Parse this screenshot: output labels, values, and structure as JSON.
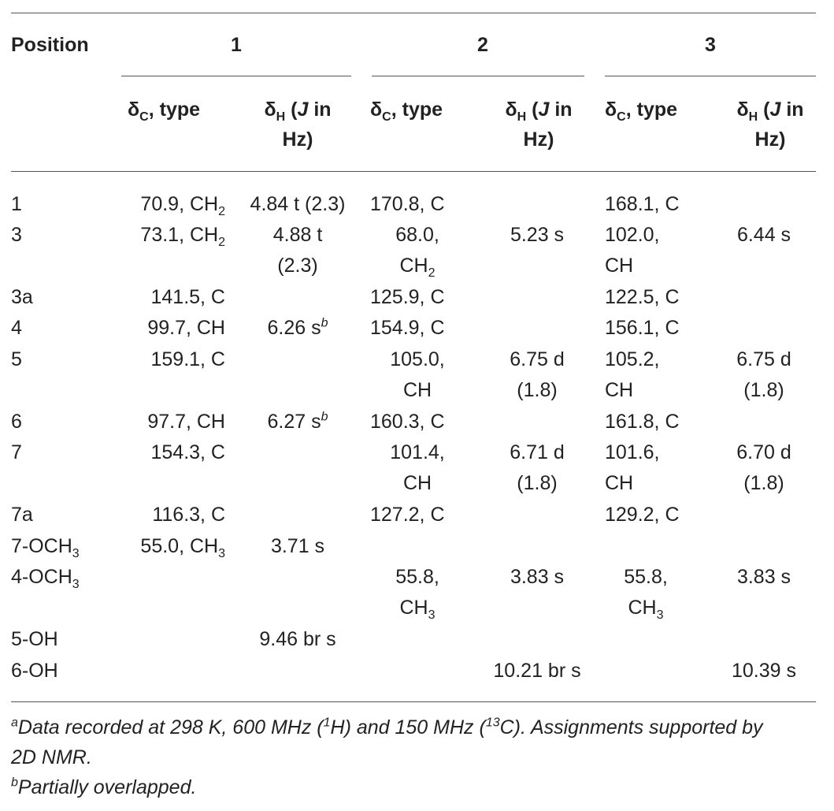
{
  "header": {
    "position": "Position",
    "groups": [
      "1",
      "2",
      "3"
    ],
    "sub": {
      "dc": "δ",
      "dc_sub": "C",
      "dc_rest": ", type",
      "dh": "δ",
      "dh_sub": "H",
      "dh_open": " (",
      "dh_j": "J",
      "dh_in": " in",
      "dh_hz": "Hz)"
    }
  },
  "rows": [
    {
      "pos": "1",
      "c1": "70.9, CH",
      "c1_sub": "2",
      "h1": "4.84 t (2.3)",
      "c2": "170.8, C",
      "h2": "",
      "c3": "168.1, C",
      "h3": ""
    },
    {
      "pos": "3",
      "c1": "73.1, CH",
      "c1_sub": "2",
      "h1a": "4.88 t",
      "h1b": "(2.3)",
      "c2a": "68.0,",
      "c2b": "CH",
      "c2b_sub": "2",
      "h2": "5.23 s",
      "c3a": "102.0,",
      "c3b": "CH",
      "h3": "6.44 s"
    },
    {
      "pos": "3a",
      "c1": "141.5, C",
      "c2": "125.9, C",
      "c3": "122.5, C"
    },
    {
      "pos": "4",
      "c1": "99.7, CH",
      "h1": "6.26 s",
      "h1_sup": "b",
      "c2": "154.9, C",
      "c3": "156.1, C"
    },
    {
      "pos": "5",
      "c1": "159.1, C",
      "c2a": "105.0,",
      "c2b": "CH",
      "h2a": "6.75 d",
      "h2b": "(1.8)",
      "c3a": "105.2,",
      "c3b": "CH",
      "h3a": "6.75 d",
      "h3b": "(1.8)"
    },
    {
      "pos": "6",
      "c1": "97.7, CH",
      "h1": "6.27 s",
      "h1_sup": "b",
      "c2": "160.3, C",
      "c3": "161.8, C"
    },
    {
      "pos": "7",
      "c1": "154.3, C",
      "c2a": "101.4,",
      "c2b": "CH",
      "h2a": "6.71 d",
      "h2b": "(1.8)",
      "c3a": "101.6,",
      "c3b": "CH",
      "h3a": "6.70 d",
      "h3b": "(1.8)"
    },
    {
      "pos": "7a",
      "c1": "116.3, C",
      "c2": "127.2, C",
      "c3": "129.2, C"
    },
    {
      "pos": "7-OCH",
      "pos_sub": "3",
      "c1": "55.0, CH",
      "c1_sub": "3",
      "h1": "3.71 s"
    },
    {
      "pos": "4-OCH",
      "pos_sub": "3",
      "c2a": "55.8,",
      "c2b": "CH",
      "c2b_sub": "3",
      "h2": "3.83 s",
      "c3a": "55.8,",
      "c3b": "CH",
      "c3b_sub": "3",
      "h3": "3.83 s"
    },
    {
      "pos": "5-OH",
      "h1": "9.46 br s"
    },
    {
      "pos": "6-OH",
      "h2": "10.21 br s",
      "h3": "10.39 s"
    }
  ],
  "footnotes": {
    "a_mark": "a",
    "a_text1": "Data recorded at 298 K, 600 MHz (",
    "a_sup1": "1",
    "a_text2": "H) and 150 MHz (",
    "a_sup2": "13",
    "a_text3": "C). Assignments supported by",
    "a_text4": "2D NMR.",
    "b_mark": "b",
    "b_text": "Partially overlapped."
  }
}
